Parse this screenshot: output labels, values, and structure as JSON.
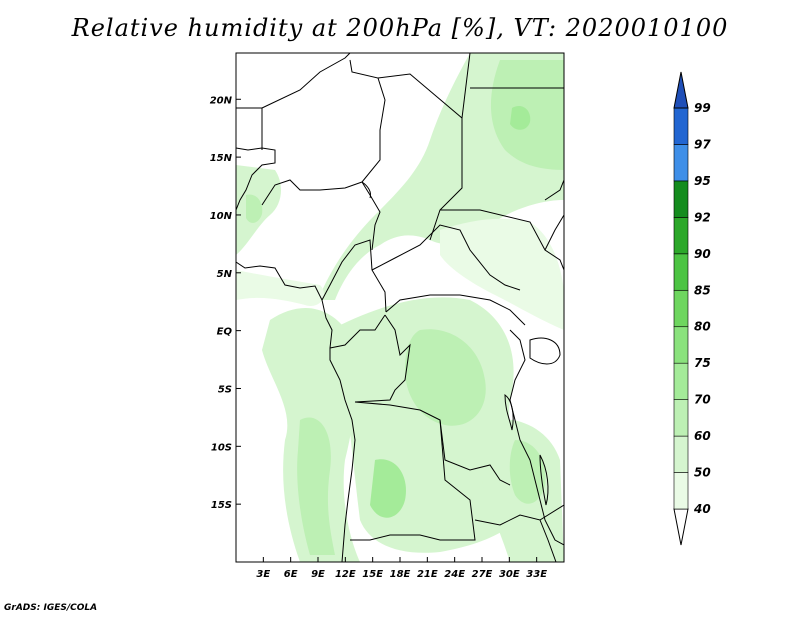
{
  "title": "Relative humidity at 200hPa [%], VT: 2020010100",
  "credit": "GrADS: IGES/COLA",
  "map": {
    "lon_range": [
      0,
      36
    ],
    "lat_range": [
      -20,
      24
    ],
    "x_ticks": [
      "3E",
      "6E",
      "9E",
      "12E",
      "15E",
      "18E",
      "21E",
      "24E",
      "27E",
      "30E",
      "33E"
    ],
    "x_tick_values": [
      3,
      6,
      9,
      12,
      15,
      18,
      21,
      24,
      27,
      30,
      33
    ],
    "y_ticks": [
      "20N",
      "15N",
      "10N",
      "5N",
      "EQ",
      "5S",
      "10S",
      "15S"
    ],
    "y_tick_values": [
      20,
      15,
      10,
      5,
      0,
      -5,
      -10,
      -15
    ]
  },
  "colorbar": {
    "levels": [
      "40",
      "50",
      "60",
      "70",
      "75",
      "80",
      "85",
      "90",
      "92",
      "95",
      "97",
      "99"
    ],
    "colors": [
      "#ffffff",
      "#eafbe6",
      "#d5f5cf",
      "#bdf0b4",
      "#a4eb99",
      "#8ae27d",
      "#6ed65f",
      "#4cc443",
      "#2ca82a",
      "#148c1e",
      "#3f8fe8",
      "#2266d2",
      "#1f4fb8"
    ]
  }
}
